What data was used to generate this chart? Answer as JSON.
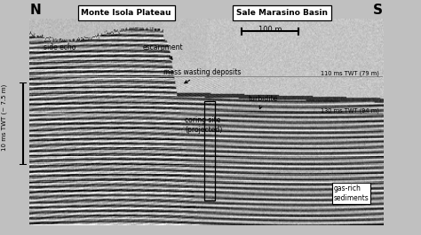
{
  "title_left": "Monte Isola Plateau",
  "title_right": "Sale Marasino Basin",
  "label_N": "N",
  "label_S": "S",
  "ylabel": "10 ms TWT (~ 7.5 m)",
  "scale_bar_label": "100 m",
  "line1_label": "110 ms TWT (79 m)",
  "line2_label": "130 ms TWT (94 m)",
  "bg_color": "#c8c8c8",
  "seismic_left_color": "#303030",
  "seismic_right_color": "#505050"
}
